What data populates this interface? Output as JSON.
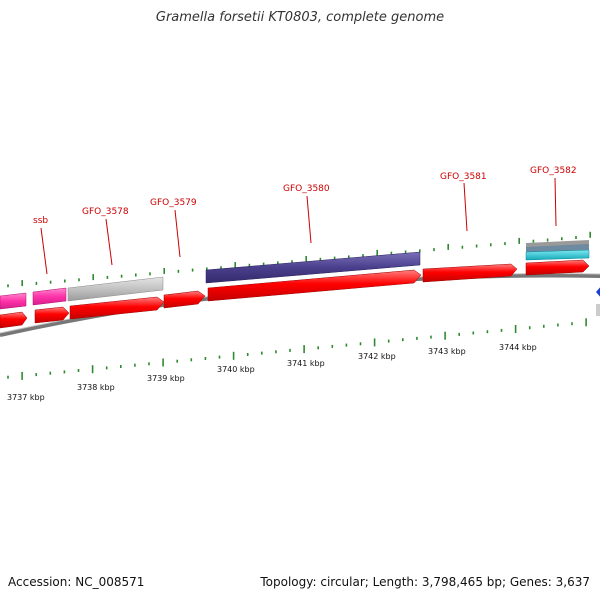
{
  "header": {
    "title": "Gramella forsetii KT0803, complete genome"
  },
  "footer": {
    "accession": "Accession: NC_008571",
    "topology": "Topology: circular; Length: 3,798,465 bp; Genes: 3,637"
  },
  "colors": {
    "cds_red": "#ff0000",
    "purple": "#4a3f8c",
    "magenta": "#ff33aa",
    "gray": "#bbbbbb",
    "cyan": "#22c4d4",
    "backbone": "#888888",
    "tick_green": "#2f8a2f",
    "label_red": "#cc0000",
    "blue_marker": "#1a3fd6"
  },
  "scale_labels": [
    "3737 kbp",
    "3738 kbp",
    "3739 kbp",
    "3740 kbp",
    "3741 kbp",
    "3742 kbp",
    "3743 kbp",
    "3744 kbp"
  ],
  "gene_labels": [
    "ssb",
    "GFO_3578",
    "GFO_3579",
    "GFO_3580",
    "GFO_3581",
    "GFO_3582"
  ]
}
